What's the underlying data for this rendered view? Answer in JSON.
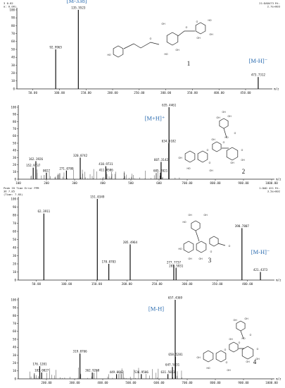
{
  "chart_data": [
    {
      "type": "bar",
      "meta_lines": [
        "3 0.82",
        "a: 0.00)"
      ],
      "meta_right": [
        "21:DAD473 Rt-",
        "2.7e+003"
      ],
      "y_ticks": [
        "100",
        "90",
        "80",
        "70",
        "60",
        "50",
        "40",
        "30",
        "20",
        "10",
        "0"
      ],
      "x_ticks": [
        {
          "x": 50,
          "label": "50.00"
        },
        {
          "x": 100,
          "label": "100.00"
        },
        {
          "x": 150,
          "label": "150.00"
        },
        {
          "x": 200,
          "label": "200.00"
        },
        {
          "x": 250,
          "label": "250.00"
        },
        {
          "x": 300,
          "label": "300.00"
        },
        {
          "x": 350,
          "label": "350.00"
        },
        {
          "x": 400,
          "label": "400.00"
        },
        {
          "x": 450,
          "label": "450.00"
        }
      ],
      "xlim": [
        20,
        495
      ],
      "ylim": [
        0,
        100
      ],
      "xunit": "m/z",
      "peaks": [
        {
          "x": 92.99,
          "y": 50,
          "label": "92.9965"
        },
        {
          "x": 135.55,
          "y": 100,
          "label": "135.5523"
        },
        {
          "x": 473.73,
          "y": 15,
          "label": "473.7312"
        }
      ],
      "ions": [
        {
          "text": "[M-338]⁻",
          "x": 135.55,
          "y": 109
        },
        {
          "text": "[M-H]⁻",
          "x": 473.73,
          "y": 33
        }
      ],
      "compound_number": "1",
      "structure_atoms": [
        "HO",
        "O",
        "OH",
        "O",
        "O",
        "HO",
        "OH",
        "HO",
        "OH",
        "OH"
      ]
    },
    {
      "type": "bar",
      "meta_lines": [],
      "meta_right": [],
      "y_ticks": [
        "100",
        "90",
        "80",
        "70",
        "60",
        "50",
        "40",
        "30",
        "20",
        "10",
        "0"
      ],
      "x_ticks": [
        {
          "x": 100,
          "label": "100"
        },
        {
          "x": 200,
          "label": "200"
        },
        {
          "x": 300,
          "label": "300"
        },
        {
          "x": 400,
          "label": "400"
        },
        {
          "x": 500,
          "label": "500"
        },
        {
          "x": 600,
          "label": "600"
        },
        {
          "x": 700,
          "label": "700.00"
        },
        {
          "x": 800,
          "label": "800.00"
        },
        {
          "x": 900,
          "label": "900.00"
        },
        {
          "x": 1000,
          "label": "1000.00"
        }
      ],
      "xlim": [
        100,
        1000
      ],
      "ylim": [
        0,
        100
      ],
      "xunit": "m/z",
      "peaks": [
        {
          "x": 152.97,
          "y": 16,
          "label": "152.9737"
        },
        {
          "x": 162.39,
          "y": 25,
          "label": "162.3926"
        },
        {
          "x": 200.0,
          "y": 9,
          "label": "0027"
        },
        {
          "x": 271.07,
          "y": 12,
          "label": "271.0780"
        },
        {
          "x": 320.07,
          "y": 30,
          "label": "320.0742"
        },
        {
          "x": 410.97,
          "y": 18,
          "label": "410.9731"
        },
        {
          "x": 411.85,
          "y": 10,
          "label": "411.8506"
        },
        {
          "x": 605.2,
          "y": 9,
          "label": "605.2021"
        },
        {
          "x": 607.31,
          "y": 24,
          "label": "607.3142"
        },
        {
          "x": 634.52,
          "y": 50,
          "label": "634.5182"
        },
        {
          "x": 635.45,
          "y": 100,
          "label": "635.4461"
        }
      ],
      "ions": [
        {
          "text": "[M+H]⁺",
          "x": 585,
          "y": 82
        }
      ],
      "compound_number": "2",
      "structure_atoms": [
        "OH",
        "HO",
        "OH",
        "O",
        "O",
        "OH",
        "HO",
        "O",
        "O",
        "OH",
        "OH",
        "OH",
        "OH",
        "OH",
        "O"
      ]
    },
    {
      "type": "bar",
      "meta_lines": [
        "Peak ID   Time    Error PPM",
        "  36      7.85",
        "(Time: 7.85)"
      ],
      "meta_right": [
        "1:DAD 421 Rt-",
        "3.5e+002"
      ],
      "y_ticks": [
        "100",
        "90",
        "80",
        "70",
        "60",
        "50",
        "40",
        "30",
        "20",
        "10",
        "0"
      ],
      "x_ticks": [
        {
          "x": 50,
          "label": "50.00"
        },
        {
          "x": 100,
          "label": "100.00"
        },
        {
          "x": 150,
          "label": "150.00"
        },
        {
          "x": 200,
          "label": "200.00"
        },
        {
          "x": 250,
          "label": "250.00"
        },
        {
          "x": 300,
          "label": "300.00"
        },
        {
          "x": 350,
          "label": "350.00"
        },
        {
          "x": 400,
          "label": "400.00"
        }
      ],
      "xlim": [
        20,
        440
      ],
      "ylim": [
        0,
        100
      ],
      "xunit": "m/z",
      "peaks": [
        {
          "x": 62.39,
          "y": 82,
          "label": "62.3911"
        },
        {
          "x": 151.03,
          "y": 100,
          "label": "151.0349"
        },
        {
          "x": 170.07,
          "y": 20,
          "label": "170.0703"
        },
        {
          "x": 205.49,
          "y": 44,
          "label": "205.4964"
        },
        {
          "x": 277.77,
          "y": 19,
          "label": "277.7737"
        },
        {
          "x": 281.59,
          "y": 15,
          "label": "281.5931"
        },
        {
          "x": 390.78,
          "y": 64,
          "label": "390.7807"
        },
        {
          "x": 421.43,
          "y": 10,
          "label": "421.4373"
        }
      ],
      "ions": [
        {
          "text": "[M-H]⁻",
          "x": 421.43,
          "y": 32
        }
      ],
      "compound_number": "3",
      "structure_atoms": [
        "OH",
        "HO",
        "OH",
        "HO",
        "O",
        "OH",
        "OH",
        "O"
      ]
    },
    {
      "type": "bar",
      "meta_lines": [],
      "meta_right": [],
      "y_ticks": [
        "100",
        "90",
        "80",
        "70",
        "60",
        "50",
        "40",
        "30",
        "20",
        "10",
        "0"
      ],
      "x_ticks": [
        {
          "x": 200,
          "label": "200.00"
        },
        {
          "x": 300,
          "label": "300.00"
        },
        {
          "x": 400,
          "label": "400.00"
        },
        {
          "x": 500,
          "label": "500.00"
        },
        {
          "x": 600,
          "label": "600.00"
        },
        {
          "x": 700,
          "label": "700.00"
        },
        {
          "x": 800,
          "label": "800.00"
        },
        {
          "x": 900,
          "label": "900.00"
        },
        {
          "x": 1000,
          "label": "1000.00"
        }
      ],
      "xlim": [
        100,
        1000
      ],
      "ylim": [
        0,
        100
      ],
      "xunit": "m/z",
      "peaks": [
        {
          "x": 176.12,
          "y": 16,
          "label": "176.1201"
        },
        {
          "x": 183.0,
          "y": 8,
          "label": "183.0027"
        },
        {
          "x": 319.08,
          "y": 32,
          "label": "319.0766"
        },
        {
          "x": 362.93,
          "y": 8,
          "label": "362.9268"
        },
        {
          "x": 449.09,
          "y": 6,
          "label": "449.0863"
        },
        {
          "x": 536.95,
          "y": 6,
          "label": "536.9506"
        },
        {
          "x": 631.5,
          "y": 6,
          "label": "631.5033"
        },
        {
          "x": 647.58,
          "y": 15,
          "label": "647.5831"
        },
        {
          "x": 657.42,
          "y": 100,
          "label": "657.4369"
        },
        {
          "x": 658.53,
          "y": 28,
          "label": "658.5281"
        }
      ],
      "ions": [
        {
          "text": "[M-H]",
          "x": 590,
          "y": 86
        }
      ],
      "compound_number": "4",
      "structure_atoms": [
        "OH",
        "HO",
        "OH",
        "O",
        "O",
        "OH",
        "HO",
        "O",
        "O",
        "OH",
        "OH",
        "OH",
        "OH",
        "O"
      ]
    }
  ]
}
